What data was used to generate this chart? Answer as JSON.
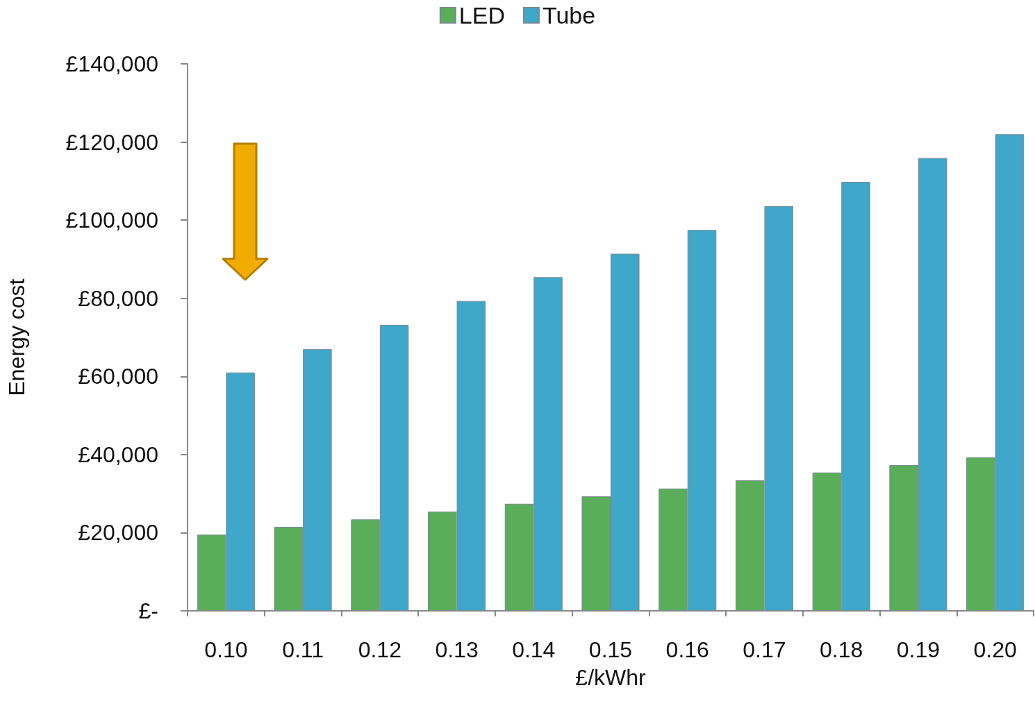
{
  "chart_data": {
    "type": "bar",
    "xlabel": "£/kWhr",
    "ylabel": "Energy cost",
    "categories": [
      "0.10",
      "0.11",
      "0.12",
      "0.13",
      "0.14",
      "0.15",
      "0.16",
      "0.17",
      "0.18",
      "0.19",
      "0.20"
    ],
    "series": [
      {
        "name": "LED",
        "color": "#5aae5a",
        "values": [
          19500,
          21500,
          23400,
          25400,
          27400,
          29300,
          31300,
          33400,
          35400,
          37300,
          39300
        ]
      },
      {
        "name": "Tube",
        "color": "#3fa7c9",
        "values": [
          61000,
          67000,
          73200,
          79300,
          85400,
          91400,
          97500,
          103600,
          109800,
          115900,
          122000
        ]
      }
    ],
    "ylim": [
      0,
      140000
    ],
    "yticks": [
      {
        "value": 0,
        "label": "£-"
      },
      {
        "value": 20000,
        "label": "£20,000"
      },
      {
        "value": 40000,
        "label": "£40,000"
      },
      {
        "value": 60000,
        "label": "£60,000"
      },
      {
        "value": 80000,
        "label": "£80,000"
      },
      {
        "value": 100000,
        "label": "£100,000"
      },
      {
        "value": 120000,
        "label": "£120,000"
      },
      {
        "value": 140000,
        "label": "£140,000"
      }
    ],
    "grid": false,
    "legend": "top"
  }
}
